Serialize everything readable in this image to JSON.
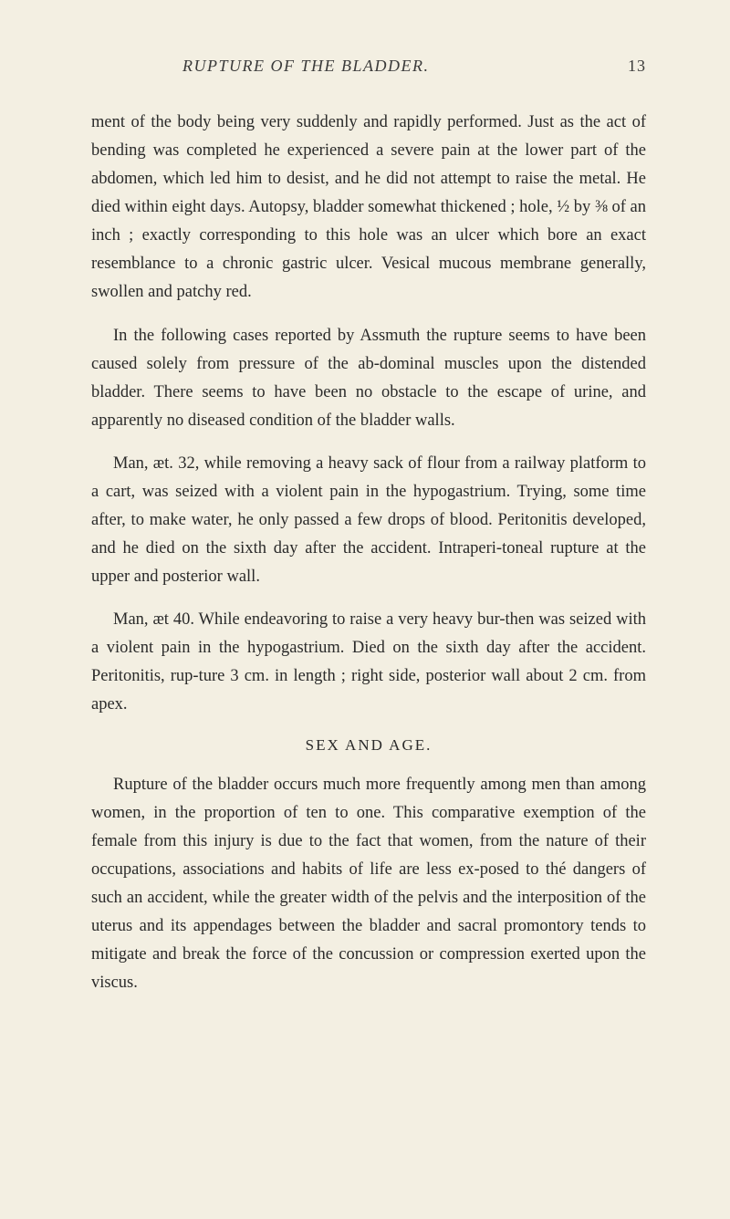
{
  "header": {
    "title": "RUPTURE OF THE BLADDER.",
    "page_number": "13"
  },
  "paragraphs": {
    "p1": "ment of the body being very suddenly and rapidly performed. Just as the act of bending was completed he experienced a severe pain at the lower part of the abdomen, which led him to desist, and he did not attempt to raise the metal. He died within eight days. Autopsy, bladder somewhat thickened ; hole, ½ by ⅜ of an inch ; exactly corresponding to this hole was an ulcer which bore an exact resemblance to a chronic gastric ulcer. Vesical mucous membrane generally, swollen and patchy red.",
    "p2": "In the following cases reported by Assmuth the rupture seems to have been caused solely from pressure of the ab-dominal muscles upon the distended bladder. There seems to have been no obstacle to the escape of urine, and apparently no diseased condition of the bladder walls.",
    "p3": "Man, æt. 32, while removing a heavy sack of flour from a railway platform to a cart, was seized with a violent pain in the hypogastrium. Trying, some time after, to make water, he only passed a few drops of blood. Peritonitis developed, and he died on the sixth day after the accident. Intraperi-toneal rupture at the upper and posterior wall.",
    "p4": "Man, æt 40. While endeavoring to raise a very heavy bur-then was seized with a violent pain in the hypogastrium. Died on the sixth day after the accident. Peritonitis, rup-ture 3 cm. in length ; right side, posterior wall about 2 cm. from apex.",
    "section_heading": "SEX AND AGE.",
    "p5": "Rupture of the bladder occurs much more frequently among men than among women, in the proportion of ten to one. This comparative exemption of the female from this injury is due to the fact that women, from the nature of their occupations, associations and habits of life are less ex-posed to thé dangers of such an accident, while the greater width of the pelvis and the interposition of the uterus and its appendages between the bladder and sacral promontory tends to mitigate and break the force of the concussion or compression exerted upon the viscus."
  }
}
